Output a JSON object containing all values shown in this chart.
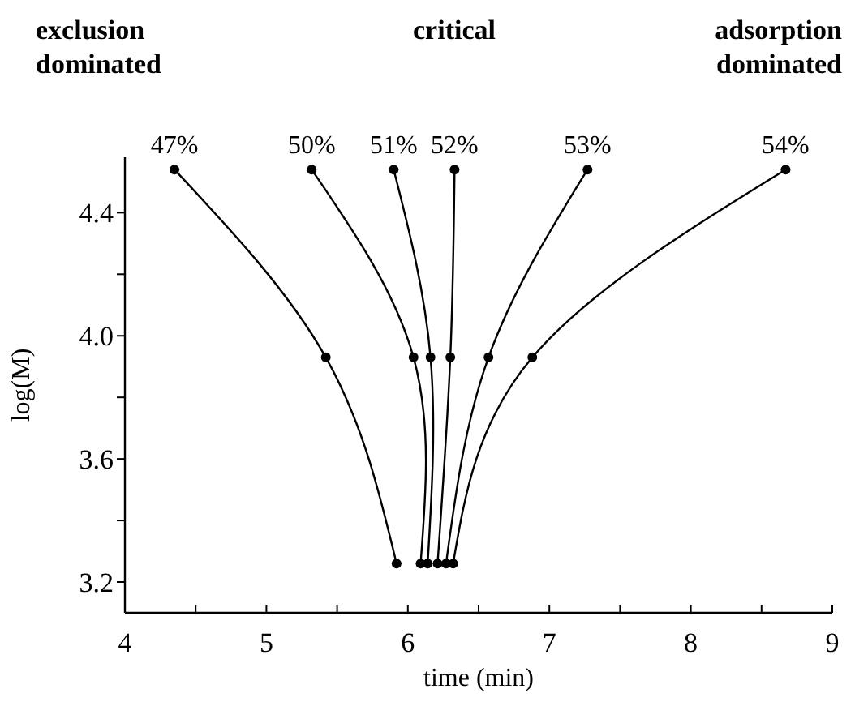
{
  "chart_data": {
    "type": "line",
    "xlabel": "time (min)",
    "ylabel": "log(M)",
    "annotations": [
      "exclusion dominated",
      "critical",
      "adsorption dominated"
    ],
    "xlim": [
      4,
      9
    ],
    "ylim": [
      3.1,
      4.58
    ],
    "xticks": [
      4,
      {
        "value": 4.5,
        "label": null
      },
      5,
      {
        "value": 5.5,
        "label": null
      },
      6,
      {
        "value": 6.5,
        "label": null
      },
      7,
      {
        "value": 7.5,
        "label": null
      },
      8,
      {
        "value": 8.5,
        "label": null
      },
      9
    ],
    "yticks": [
      3.2,
      {
        "value": 3.4,
        "label": null
      },
      3.6,
      {
        "value": 3.8,
        "label": null
      },
      {
        "value": 4,
        "label": "4.0"
      },
      {
        "value": 4.2,
        "label": null
      },
      4.4
    ],
    "marker": "circle",
    "line_style": "solid",
    "series": [
      {
        "name": "47%",
        "color": "#000000",
        "x": [
          5.92,
          5.42,
          4.35
        ],
        "values": [
          3.26,
          3.93,
          4.54
        ]
      },
      {
        "name": "50%",
        "color": "#000000",
        "x": [
          6.09,
          6.04,
          5.32
        ],
        "values": [
          3.26,
          3.93,
          4.54
        ]
      },
      {
        "name": "51%",
        "color": "#000000",
        "x": [
          6.14,
          6.16,
          5.9
        ],
        "values": [
          3.26,
          3.93,
          4.54
        ]
      },
      {
        "name": "52%",
        "color": "#000000",
        "x": [
          6.21,
          6.3,
          6.33
        ],
        "values": [
          3.26,
          3.93,
          4.54
        ]
      },
      {
        "name": "53%",
        "color": "#000000",
        "x": [
          6.27,
          6.57,
          7.27
        ],
        "values": [
          3.26,
          3.93,
          4.54
        ]
      },
      {
        "name": "54%",
        "color": "#000000",
        "x": [
          6.32,
          6.88,
          8.67
        ],
        "values": [
          3.26,
          3.93,
          4.54
        ]
      }
    ]
  }
}
